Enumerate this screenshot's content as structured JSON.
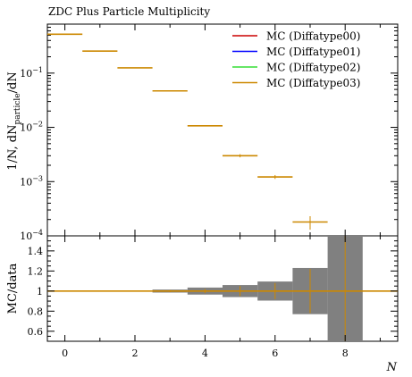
{
  "chart_data": [
    {
      "type": "line",
      "title": "ZDC Plus Particle Multiplicity",
      "ylabel": "1/N, dN_particle/dN",
      "xlabel": "",
      "yscale": "log",
      "ylim": [
        0.0001,
        0.8
      ],
      "xlim": [
        -0.5,
        9.5
      ],
      "ytick_labels": [
        "10−4",
        "10−3",
        "10−2",
        "10−1"
      ],
      "ytick_values": [
        0.0001,
        0.001,
        0.01,
        0.1
      ],
      "legend_position": "top-right",
      "series": [
        {
          "name": "MC (Diffatype00)",
          "color": "#cc0000"
        },
        {
          "name": "MC (Diffatype01)",
          "color": "#0000ff"
        },
        {
          "name": "MC (Diffatype02)",
          "color": "#33dd33"
        },
        {
          "name": "MC (Diffatype03)",
          "color": "#cc8800"
        }
      ],
      "bins": [
        {
          "xlo": -0.5,
          "xhi": 0.5,
          "y": 0.52
        },
        {
          "xlo": 0.5,
          "xhi": 1.5,
          "y": 0.255
        },
        {
          "xlo": 1.5,
          "xhi": 2.5,
          "y": 0.125
        },
        {
          "xlo": 2.5,
          "xhi": 3.5,
          "y": 0.047
        },
        {
          "xlo": 3.5,
          "xhi": 4.5,
          "y": 0.0107
        },
        {
          "xlo": 4.5,
          "xhi": 5.5,
          "y": 0.003,
          "yerr": 0.0002
        },
        {
          "xlo": 5.5,
          "xhi": 6.5,
          "y": 0.00122,
          "yerr": 0.0001
        },
        {
          "xlo": 6.5,
          "xhi": 7.5,
          "y": 0.00018,
          "yerr": 5e-05
        }
      ]
    },
    {
      "type": "area",
      "ylabel": "MC/data",
      "xlabel": "N",
      "ylim": [
        0.5,
        1.55
      ],
      "xlim": [
        -0.5,
        9.5
      ],
      "xtick_labels": [
        "0",
        "2",
        "4",
        "6",
        "8"
      ],
      "xtick_values": [
        0,
        2,
        4,
        6,
        8
      ],
      "ytick_labels": [
        "0.6",
        "0.8",
        "1",
        "1.2",
        "1.4"
      ],
      "ytick_values": [
        0.6,
        0.8,
        1.0,
        1.2,
        1.4
      ],
      "ratio_value": 1.0,
      "band_color": "#808080",
      "uncertainty_band": [
        {
          "xlo": -0.5,
          "xhi": 0.5,
          "lo": 0.997,
          "hi": 1.003
        },
        {
          "xlo": 0.5,
          "xhi": 1.5,
          "lo": 0.996,
          "hi": 1.004
        },
        {
          "xlo": 1.5,
          "xhi": 2.5,
          "lo": 0.994,
          "hi": 1.006
        },
        {
          "xlo": 2.5,
          "xhi": 3.5,
          "lo": 0.985,
          "hi": 1.015
        },
        {
          "xlo": 3.5,
          "xhi": 4.5,
          "lo": 0.965,
          "hi": 1.035
        },
        {
          "xlo": 4.5,
          "xhi": 5.5,
          "lo": 0.94,
          "hi": 1.06
        },
        {
          "xlo": 5.5,
          "xhi": 6.5,
          "lo": 0.905,
          "hi": 1.095
        },
        {
          "xlo": 6.5,
          "xhi": 7.5,
          "lo": 0.77,
          "hi": 1.23
        },
        {
          "xlo": 7.5,
          "xhi": 8.5,
          "lo": 0.5,
          "hi": 1.55
        }
      ],
      "mc_error_bars": [
        {
          "x": 3.0,
          "lo": 0.99,
          "hi": 1.01
        },
        {
          "x": 4.0,
          "lo": 0.98,
          "hi": 1.02
        },
        {
          "x": 5.0,
          "lo": 0.95,
          "hi": 1.05
        },
        {
          "x": 6.0,
          "lo": 0.92,
          "hi": 1.08
        },
        {
          "x": 7.0,
          "lo": 0.78,
          "hi": 1.22
        },
        {
          "x": 8.0,
          "lo": 0.5,
          "hi": 1.55
        }
      ]
    }
  ]
}
